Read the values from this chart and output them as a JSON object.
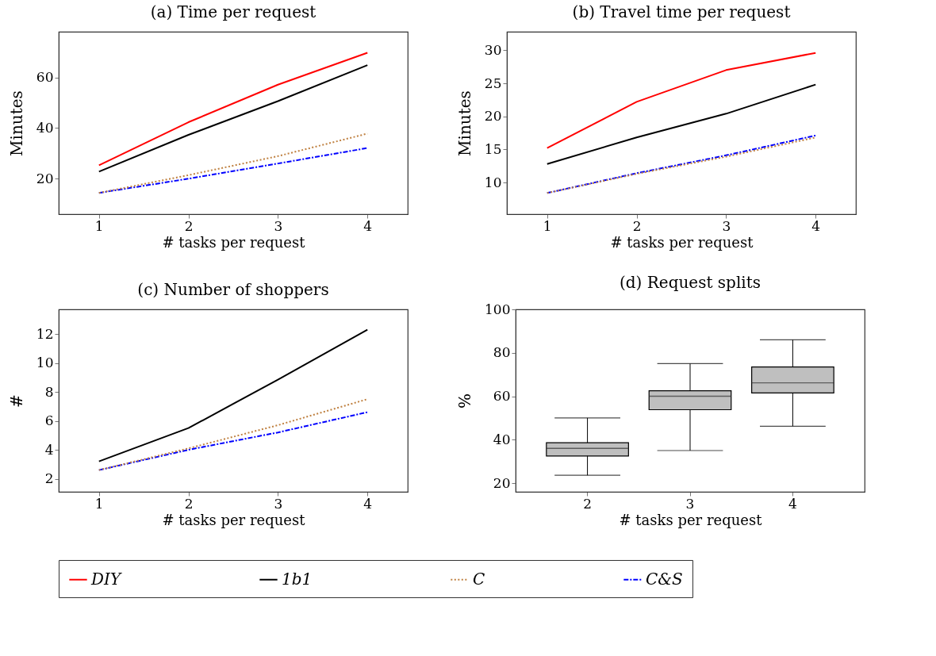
{
  "chart_data": [
    {
      "type": "line",
      "title": "(a) Time per request",
      "xlabel": "# tasks per request",
      "ylabel": "Minutes",
      "x": [
        1,
        2,
        3,
        4
      ],
      "xlim": [
        0.55,
        4.45
      ],
      "xticks": [
        1,
        2,
        3,
        4
      ],
      "ylim": [
        6,
        78
      ],
      "yticks": [
        20,
        40,
        60
      ],
      "grid": false,
      "legend": "bottom",
      "series": [
        {
          "name": "DIY",
          "color": "#ff0000",
          "line_style": "solid",
          "values": [
            25.3,
            42.3,
            57.1,
            69.7
          ]
        },
        {
          "name": "1b1",
          "color": "#000000",
          "line_style": "solid",
          "values": [
            22.8,
            37.3,
            50.6,
            64.8
          ]
        },
        {
          "name": "C",
          "color": "#bf8040",
          "line_style": "dotted",
          "values": [
            14.4,
            21.4,
            28.9,
            37.8
          ]
        },
        {
          "name": "C&S",
          "color": "#0000ff",
          "line_style": "dashed",
          "values": [
            14.4,
            20,
            26,
            32.1
          ]
        }
      ]
    },
    {
      "type": "line",
      "title": "(b) Travel time per request",
      "xlabel": "# tasks per request",
      "ylabel": "Minutes",
      "x": [
        1,
        2,
        3,
        4
      ],
      "xlim": [
        0.55,
        4.45
      ],
      "xticks": [
        1,
        2,
        3,
        4
      ],
      "ylim": [
        5.2,
        32.8
      ],
      "yticks": [
        10,
        15,
        20,
        25,
        30
      ],
      "grid": false,
      "legend": "bottom",
      "series": [
        {
          "name": "DIY",
          "color": "#ff0000",
          "line_style": "solid",
          "values": [
            15.2,
            22.2,
            27,
            29.6
          ]
        },
        {
          "name": "1b1",
          "color": "#000000",
          "line_style": "solid",
          "values": [
            12.8,
            16.8,
            20.4,
            24.8
          ]
        },
        {
          "name": "C",
          "color": "#bf8040",
          "line_style": "dotted",
          "values": [
            8.4,
            11.3,
            13.9,
            16.8
          ]
        },
        {
          "name": "C&S",
          "color": "#0000ff",
          "line_style": "dashed",
          "values": [
            8.4,
            11.4,
            14.1,
            17.1
          ]
        }
      ]
    },
    {
      "type": "line",
      "title": "(c) Number of shoppers",
      "xlabel": "# tasks per request",
      "ylabel": "#",
      "x": [
        1,
        2,
        3,
        4
      ],
      "xlim": [
        0.55,
        4.45
      ],
      "xticks": [
        1,
        2,
        3,
        4
      ],
      "ylim": [
        1.1,
        13.7
      ],
      "yticks": [
        2,
        4,
        6,
        8,
        10,
        12
      ],
      "grid": false,
      "legend": "bottom",
      "series": [
        {
          "name": "1b1",
          "color": "#000000",
          "line_style": "solid",
          "values": [
            3.2,
            5.5,
            8.85,
            12.3
          ]
        },
        {
          "name": "C",
          "color": "#bf8040",
          "line_style": "dotted",
          "values": [
            2.6,
            4.1,
            5.7,
            7.5
          ]
        },
        {
          "name": "C&S",
          "color": "#0000ff",
          "line_style": "dashed",
          "values": [
            2.6,
            4,
            5.2,
            6.6
          ]
        }
      ]
    },
    {
      "type": "box",
      "title": "(d) Request splits",
      "xlabel": "# tasks per request",
      "ylabel": "%",
      "categories": [
        "2",
        "3",
        "4"
      ],
      "ylim": [
        16,
        100
      ],
      "yticks": [
        20,
        40,
        60,
        80,
        100
      ],
      "grid": false,
      "series": [
        {
          "color": "#bfbfbf",
          "boxes": [
            {
              "low": 23.6,
              "q1": 32.5,
              "median": 36,
              "q3": 38.6,
              "high": 50
            },
            {
              "low": 35,
              "q1": 53.8,
              "median": 60,
              "q3": 62.5,
              "high": 75
            },
            {
              "low": 46.2,
              "q1": 61.5,
              "median": 66.2,
              "q3": 73.5,
              "high": 86
            }
          ]
        }
      ]
    }
  ]
}
